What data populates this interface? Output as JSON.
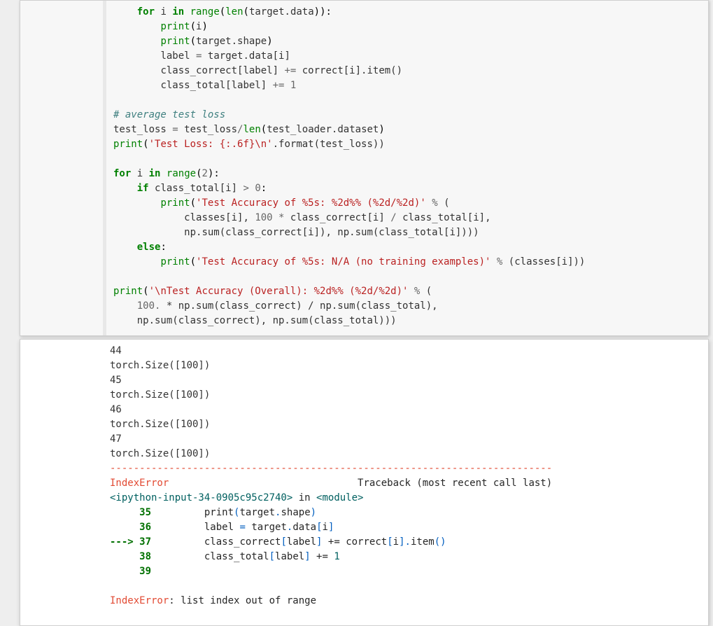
{
  "code": {
    "for_line": {
      "for": "for",
      "i": "i",
      "in": "in",
      "range": "range",
      "len": "len",
      "target_data": "target.data"
    },
    "print_i": {
      "print": "print",
      "arg": "i"
    },
    "print_shape": {
      "print": "print",
      "arg": "target.shape"
    },
    "label_assign": {
      "lhs": "label",
      "rhs": "target.data[i]"
    },
    "cc_label": {
      "lhs": "class_correct[label]",
      "op": "+=",
      "rhs_a": "correct[i].item()"
    },
    "ct_label": {
      "lhs": "class_total[label]",
      "op": "+=",
      "rhs": "1"
    },
    "comment1": "# average test loss",
    "tl_assign": {
      "lhs": "test_loss",
      "rhs_a": "test_loss",
      "rhs_div": "len",
      "rhs_arg": "test_loader.dataset"
    },
    "tl_print": {
      "print": "print",
      "str": "'Test Loss: {:.6f}\\n'",
      "fmt": ".format(test_loss))"
    },
    "for2": {
      "for": "for",
      "i": "i",
      "in": "in",
      "range": "range",
      "n": "2"
    },
    "if_ct": {
      "if": "if",
      "cond_a": "class_total[i]",
      "op": ">",
      "zero": "0"
    },
    "acc_print": {
      "print": "print",
      "str": "'Test Accuracy of %5s: %2d%% (%2d/%2d)'",
      "pct": "%",
      "open": "("
    },
    "acc_line2": "classes[i], 100 * class_correct[i] / class_total[i],",
    "acc_line3": "np.sum(class_correct[i]), np.sum(class_total[i])))",
    "else": "else",
    "na_print": {
      "print": "print",
      "str": "'Test Accuracy of %5s: N/A (no training examples)'",
      "pct": "%",
      "rest": "(classes[i]))"
    },
    "overall_print": {
      "print": "print",
      "str": "'\\nTest Accuracy (Overall): %2d%% (%2d/%2d)'",
      "pct": "%",
      "open": "("
    },
    "overall_l2_a": "100.",
    "overall_l2_b": " * np.sum(class_correct) / np.sum(class_total),",
    "overall_l3": "np.sum(class_correct), np.sum(class_total)))"
  },
  "output": {
    "plain_lines": "44\ntorch.Size([100])\n45\ntorch.Size([100])\n46\ntorch.Size([100])\n47\ntorch.Size([100])\n",
    "dashes": "---------------------------------------------------------------------------",
    "err_name": "IndexError",
    "traceback": "Traceback (most recent call last)",
    "ipy_loc": "<ipython-input-34-0905c95c2740>",
    "in": "in",
    "module": "<module>",
    "l35_no": "35",
    "l35_a": "print",
    "l35_b": "(",
    "l35_c": "target",
    "l35_d": ".",
    "l35_e": "shape",
    "l35_f": ")",
    "l36_no": "36",
    "l36_a": "label ",
    "l36_b": "=",
    "l36_c": " target",
    "l36_d": ".",
    "l36_e": "data",
    "l36_f": "[",
    "l36_g": "i",
    "l36_h": "]",
    "arrow": "---> ",
    "l37_no": "37",
    "l37_a": "class_correct",
    "l37_b": "[",
    "l37_c": "label",
    "l37_d": "]",
    "l37_e": " += ",
    "l37_f": "correct",
    "l37_g": "[",
    "l37_h": "i",
    "l37_i": "]",
    "l37_j": ".",
    "l37_k": "item",
    "l37_l": "(",
    "l37_m": ")",
    "l38_no": "38",
    "l38_a": "class_total",
    "l38_b": "[",
    "l38_c": "label",
    "l38_d": "]",
    "l38_e": " += ",
    "l38_f": "1",
    "l39_no": "39",
    "err_msg": ": list index out of range"
  },
  "style": {
    "kw_color": "#008000",
    "str_color": "#ba2121",
    "comment_color": "#408080",
    "err_color": "#e24a33",
    "tb_teal": "#006060",
    "tb_green": "#007000",
    "tb_blue": "#005EBF",
    "background_outer": "#eeeeee",
    "background_code": "#f7f7f7",
    "background_output": "#ffffff",
    "font_size_pt": 10.5
  }
}
